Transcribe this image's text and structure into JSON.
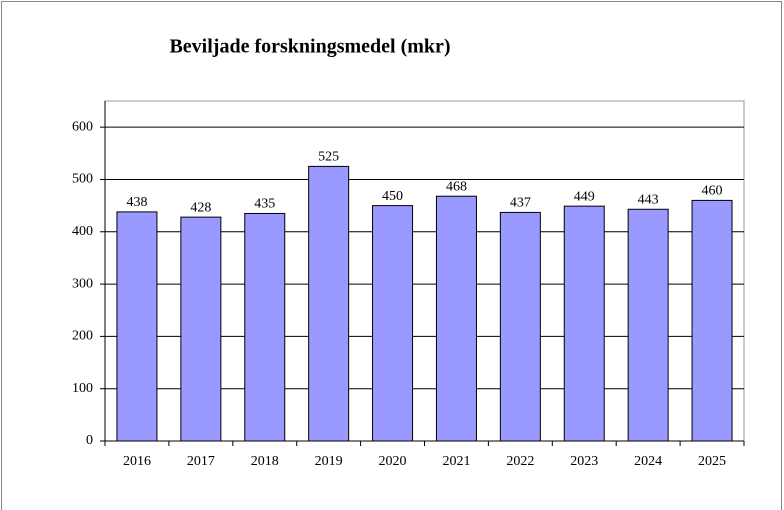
{
  "chart_data": {
    "type": "bar",
    "title": "Beviljade forskningsmedel (mkr)",
    "categories": [
      "2016",
      "2017",
      "2018",
      "2019",
      "2020",
      "2021",
      "2022",
      "2023",
      "2024",
      "2025"
    ],
    "values": [
      438,
      428,
      435,
      525,
      450,
      468,
      437,
      449,
      443,
      460
    ],
    "color": "#9999ff",
    "ylim": [
      0,
      650
    ],
    "yticks": [
      0,
      100,
      200,
      300,
      400,
      500,
      600
    ],
    "grid": true
  }
}
